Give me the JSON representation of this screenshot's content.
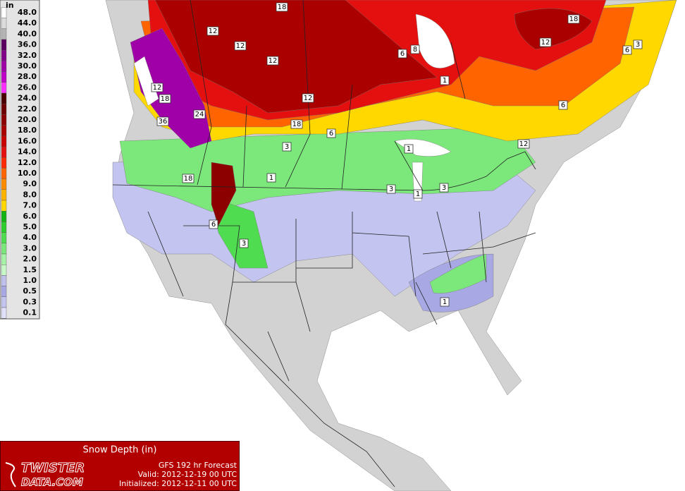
{
  "legend": {
    "unit": "in",
    "labels": [
      "48.0",
      "44.0",
      "40.0",
      "36.0",
      "32.0",
      "30.0",
      "28.0",
      "26.0",
      "24.0",
      "22.0",
      "20.0",
      "18.0",
      "16.0",
      "14.0",
      "12.0",
      "10.0",
      "9.0",
      "8.0",
      "7.0",
      "6.0",
      "5.0",
      "4.0",
      "3.0",
      "2.0",
      "1.5",
      "1.0",
      "0.5",
      "0.3",
      "0.1"
    ],
    "colors": [
      "#ffffff",
      "#dcdcdc",
      "#b4b4b4",
      "#5c0060",
      "#800088",
      "#a000a8",
      "#c000c8",
      "#ff30ff",
      "#4a0000",
      "#6e0000",
      "#8c0000",
      "#aa0000",
      "#c80000",
      "#e41010",
      "#ff2a00",
      "#ff6400",
      "#ff8c00",
      "#ffb400",
      "#ffd800",
      "#14b414",
      "#2ccd2c",
      "#50dc50",
      "#7ce87c",
      "#a6f2a6",
      "#c8f8c8",
      "#c0c0ec",
      "#a8a8e4",
      "#c4c4f0",
      "#e0e0f8"
    ]
  },
  "contour_labels": [
    "18",
    "12",
    "12",
    "12",
    "12",
    "18",
    "24",
    "36",
    "12",
    "18",
    "6",
    "3",
    "18",
    "1",
    "6",
    "3",
    "6",
    "8",
    "1",
    "1",
    "1",
    "3",
    "3",
    "12",
    "6",
    "18",
    "12",
    "6",
    "3",
    "1"
  ],
  "info": {
    "title": "Snow Depth (in)",
    "forecast": "GFS 192 hr Forecast",
    "valid": "Valid: 2012-12-19 00 UTC",
    "initialized": "Initialized: 2012-12-11 00 UTC",
    "logo_top": "TWISTER",
    "logo_bottom": "DATA.COM"
  }
}
